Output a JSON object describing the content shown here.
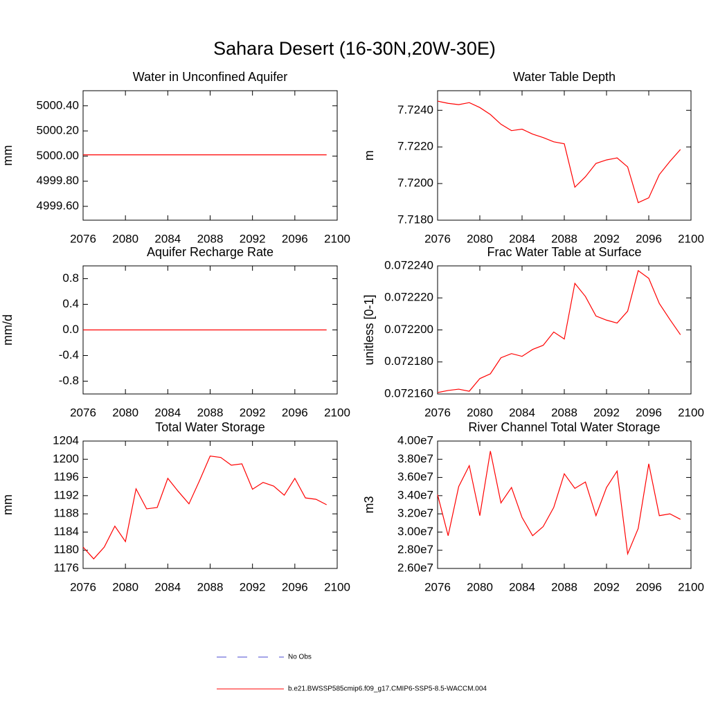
{
  "title": "Sahara Desert (16-30N,20W-30E)",
  "legend": [
    {
      "name": "No Obs",
      "color": "#4a4ad0",
      "dash": true
    },
    {
      "name": "b.e21.BWSSP585cmip6.f09_g17.CMIP6-SSP5-8.5-WACCM.004",
      "color": "#ff0000",
      "dash": false
    }
  ],
  "chart_data": [
    {
      "type": "line",
      "title": "Water in Unconfined Aquifer",
      "ylabel": "mm",
      "color": "#ff0000",
      "x": [
        2076,
        2077,
        2078,
        2079,
        2080,
        2081,
        2082,
        2083,
        2084,
        2085,
        2086,
        2087,
        2088,
        2089,
        2090,
        2091,
        2092,
        2093,
        2094,
        2095,
        2096,
        2097,
        2098,
        2099
      ],
      "values": [
        5000.01,
        5000.01,
        5000.01,
        5000.01,
        5000.01,
        5000.01,
        5000.01,
        5000.01,
        5000.01,
        5000.01,
        5000.01,
        5000.01,
        5000.01,
        5000.01,
        5000.01,
        5000.01,
        5000.01,
        5000.01,
        5000.01,
        5000.01,
        5000.01,
        5000.01,
        5000.01,
        5000.01
      ],
      "xlim": [
        2076,
        2100
      ],
      "xticks": [
        2076,
        2080,
        2084,
        2088,
        2092,
        2096,
        2100
      ],
      "ylim": [
        4999.49,
        5000.52
      ],
      "yticks": [
        {
          "value": 4999.6,
          "label": "4999.60"
        },
        {
          "value": 4999.8,
          "label": "4999.80"
        },
        {
          "value": 5000.0,
          "label": "5000.00"
        },
        {
          "value": 5000.2,
          "label": "5000.20"
        },
        {
          "value": 5000.4,
          "label": "5000.40"
        }
      ]
    },
    {
      "type": "line",
      "title": "Water Table Depth",
      "ylabel": "m",
      "color": "#ff0000",
      "x": [
        2076,
        2077,
        2078,
        2079,
        2080,
        2081,
        2082,
        2083,
        2084,
        2085,
        2086,
        2087,
        2088,
        2089,
        2090,
        2091,
        2092,
        2093,
        2094,
        2095,
        2096,
        2097,
        2098,
        2099
      ],
      "values": [
        7.7245,
        7.72438,
        7.72431,
        7.72442,
        7.72415,
        7.72377,
        7.72324,
        7.72289,
        7.72297,
        7.7227,
        7.72251,
        7.72228,
        7.72217,
        7.7198,
        7.72037,
        7.7211,
        7.72129,
        7.7214,
        7.72091,
        7.71896,
        7.71922,
        7.72049,
        7.72121,
        7.72186
      ],
      "xlim": [
        2076,
        2100
      ],
      "xticks": [
        2076,
        2080,
        2084,
        2088,
        2092,
        2096,
        2100
      ],
      "ylim": [
        7.718,
        7.72507
      ],
      "yticks": [
        {
          "value": 7.718,
          "label": "7.7180"
        },
        {
          "value": 7.72,
          "label": "7.7200"
        },
        {
          "value": 7.722,
          "label": "7.7220"
        },
        {
          "value": 7.724,
          "label": "7.7240"
        }
      ]
    },
    {
      "type": "line",
      "title": "Aquifer Recharge Rate",
      "ylabel": "mm/d",
      "color": "#ff0000",
      "x": [
        2076,
        2077,
        2078,
        2079,
        2080,
        2081,
        2082,
        2083,
        2084,
        2085,
        2086,
        2087,
        2088,
        2089,
        2090,
        2091,
        2092,
        2093,
        2094,
        2095,
        2096,
        2097,
        2098,
        2099
      ],
      "values": [
        0,
        0,
        0,
        0,
        0,
        0,
        0,
        0,
        0,
        0,
        0,
        0,
        0,
        0,
        0,
        0,
        0,
        0,
        0,
        0,
        0,
        0,
        0,
        0
      ],
      "xlim": [
        2076,
        2100
      ],
      "xticks": [
        2076,
        2080,
        2084,
        2088,
        2092,
        2096,
        2100
      ],
      "ylim": [
        -1,
        1
      ],
      "yticks": [
        -0.8,
        -0.4,
        {
          "value": 0,
          "label": "0.0"
        },
        0.4,
        0.8
      ]
    },
    {
      "type": "line",
      "title": "Frac Water Table at Surface",
      "ylabel": "unitless [0-1]",
      "color": "#ff0000",
      "x": [
        2076,
        2077,
        2078,
        2079,
        2080,
        2081,
        2082,
        2083,
        2084,
        2085,
        2086,
        2087,
        2088,
        2089,
        2090,
        2091,
        2092,
        2093,
        2094,
        2095,
        2096,
        2097,
        2098,
        2099
      ],
      "values": [
        0.0721609,
        0.0721622,
        0.072163,
        0.0721617,
        0.0721696,
        0.0721726,
        0.0721826,
        0.0721852,
        0.0721835,
        0.0721878,
        0.0721904,
        0.0721987,
        0.0721943,
        0.0722291,
        0.0722209,
        0.0722087,
        0.0722061,
        0.0722043,
        0.0722117,
        0.072237,
        0.0722322,
        0.0722165,
        0.0722065,
        0.072197
      ],
      "xlim": [
        2076,
        2100
      ],
      "xticks": [
        2076,
        2080,
        2084,
        2088,
        2092,
        2096,
        2100
      ],
      "ylim": [
        0.07216,
        0.07224
      ],
      "yticks": [
        {
          "value": 0.07216,
          "label": "0.072160"
        },
        {
          "value": 0.07218,
          "label": "0.072180"
        },
        {
          "value": 0.0722,
          "label": "0.072200"
        },
        {
          "value": 0.07222,
          "label": "0.072220"
        },
        {
          "value": 0.07224,
          "label": "0.072240"
        }
      ]
    },
    {
      "type": "line",
      "title": "Total Water Storage",
      "ylabel": "mm",
      "color": "#ff0000",
      "x": [
        2076,
        2077,
        2078,
        2079,
        2080,
        2081,
        2082,
        2083,
        2084,
        2085,
        2086,
        2087,
        2088,
        2089,
        2090,
        2091,
        2092,
        2093,
        2094,
        2095,
        2096,
        2097,
        2098,
        2099
      ],
      "values": [
        1180.7,
        1178.1,
        1180.7,
        1185.3,
        1181.9,
        1193.5,
        1189.1,
        1189.4,
        1195.8,
        1192.9,
        1190.2,
        1195.3,
        1200.7,
        1200.4,
        1198.7,
        1199.0,
        1193.4,
        1194.9,
        1194.1,
        1192.1,
        1195.8,
        1191.5,
        1191.2,
        1190.0
      ],
      "xlim": [
        2076,
        2100
      ],
      "xticks": [
        2076,
        2080,
        2084,
        2088,
        2092,
        2096,
        2100
      ],
      "ylim": [
        1176,
        1204
      ],
      "yticks": [
        1176,
        1180,
        1184,
        1188,
        1192,
        1196,
        1200,
        1204
      ]
    },
    {
      "type": "line",
      "title": "River Channel Total Water Storage",
      "ylabel": "m3",
      "color": "#ff0000",
      "x": [
        2076,
        2077,
        2078,
        2079,
        2080,
        2081,
        2082,
        2083,
        2084,
        2085,
        2086,
        2087,
        2088,
        2089,
        2090,
        2091,
        2092,
        2093,
        2094,
        2095,
        2096,
        2097,
        2098,
        2099
      ],
      "values": [
        34100000,
        29600000,
        35000000,
        37300000,
        31800000,
        38900000,
        33200000,
        34900000,
        31600000,
        29600000,
        30600000,
        32700000,
        36400000,
        34800000,
        35500000,
        31800000,
        34900000,
        36700000,
        27600000,
        30400000,
        37500000,
        31800000,
        32000000,
        31400000
      ],
      "xlim": [
        2076,
        2100
      ],
      "xticks": [
        2076,
        2080,
        2084,
        2088,
        2092,
        2096,
        2100
      ],
      "ylim": [
        26000000,
        40000000
      ],
      "yticks": [
        {
          "value": 26000000,
          "label": "2.60e7"
        },
        {
          "value": 28000000,
          "label": "2.80e7"
        },
        {
          "value": 30000000,
          "label": "3.00e7"
        },
        {
          "value": 32000000,
          "label": "3.20e7"
        },
        {
          "value": 34000000,
          "label": "3.40e7"
        },
        {
          "value": 36000000,
          "label": "3.60e7"
        },
        {
          "value": 38000000,
          "label": "3.80e7"
        },
        {
          "value": 40000000,
          "label": "4.00e7"
        }
      ]
    }
  ]
}
